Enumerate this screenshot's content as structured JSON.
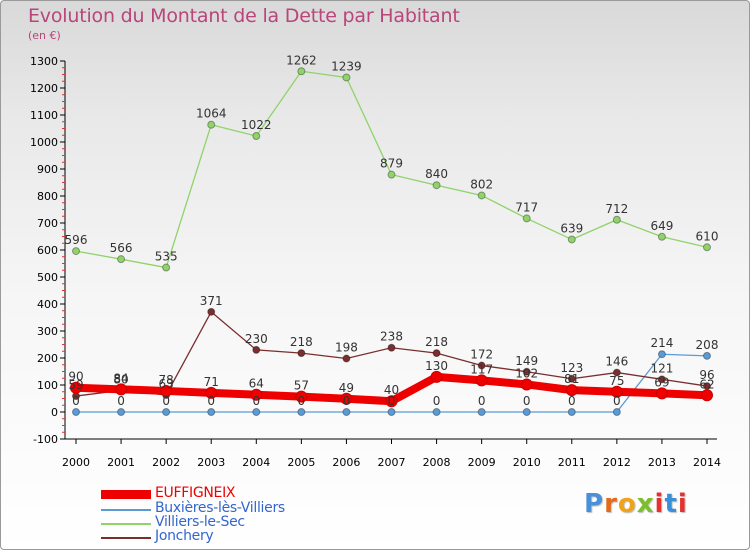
{
  "title": "Evolution du Montant de la Dette par Habitant",
  "unit": "(en €)",
  "brand": {
    "text": "Proxiti",
    "colors": [
      "#4a90d9",
      "#e46a1b",
      "#f0a21a",
      "#7bbf2a",
      "#e6322e",
      "#3a8fd8",
      "#e6322e"
    ]
  },
  "chart_data": {
    "type": "line",
    "title": "Evolution du Montant de la Dette par Habitant",
    "ylabel": "(en €)",
    "xlabel": "",
    "x": [
      2000,
      2001,
      2002,
      2003,
      2004,
      2005,
      2006,
      2007,
      2008,
      2009,
      2010,
      2011,
      2012,
      2013,
      2014
    ],
    "ylim": [
      -100,
      1300
    ],
    "yticks": [
      -100,
      0,
      100,
      200,
      300,
      400,
      500,
      600,
      700,
      800,
      900,
      1000,
      1100,
      1200,
      1300
    ],
    "grid": false,
    "legend_position": "bottom-left",
    "series": [
      {
        "name": "EUFFIGNEIX",
        "color": "#ee0000",
        "values": [
          90,
          84,
          78,
          71,
          64,
          57,
          49,
          40,
          130,
          117,
          102,
          81,
          75,
          69,
          62
        ],
        "labels": [
          "90",
          "84",
          "78",
          "71",
          "64",
          "57",
          "49",
          "40",
          "130",
          "117",
          "102",
          "81",
          "75",
          "69",
          "62"
        ]
      },
      {
        "name": "Buxières-lès-Villiers",
        "color": "#5b9bd5",
        "values": [
          0,
          0,
          0,
          0,
          0,
          0,
          0,
          0,
          0,
          0,
          0,
          0,
          0,
          214,
          208
        ],
        "labels": [
          "0",
          "0",
          "0",
          "0",
          "0",
          "0",
          "0",
          "0",
          "0",
          "0",
          "0",
          "0",
          "0",
          "214",
          "208"
        ]
      },
      {
        "name": "Villiers-le-Sec",
        "color": "#8fd36a",
        "values": [
          596,
          566,
          535,
          1064,
          1022,
          1262,
          1239,
          879,
          840,
          802,
          717,
          639,
          712,
          649,
          610
        ],
        "labels": [
          "596",
          "566",
          "535",
          "1064",
          "1022",
          "1262",
          "1239",
          "879",
          "840",
          "802",
          "717",
          "639",
          "712",
          "649",
          "610"
        ]
      },
      {
        "name": "Jonchery",
        "color": "#7a2e2e",
        "values": [
          59,
          80,
          63,
          371,
          230,
          218,
          198,
          238,
          218,
          172,
          149,
          123,
          146,
          121,
          96
        ],
        "labels": [
          "59",
          "80",
          "63",
          "371",
          "230",
          "218",
          "198",
          "238",
          "218",
          "172",
          "149",
          "123",
          "146",
          "121",
          "96"
        ]
      }
    ]
  }
}
